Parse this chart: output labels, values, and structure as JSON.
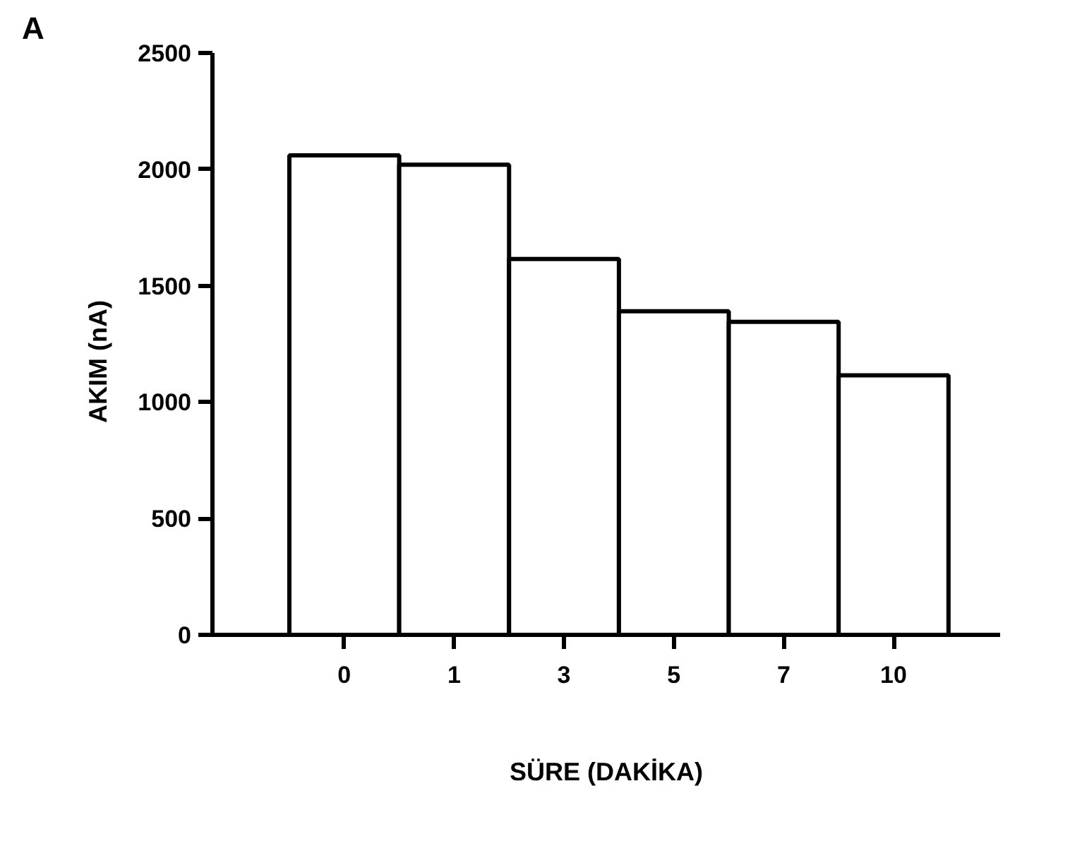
{
  "chart_data": {
    "type": "bar",
    "categories": [
      "0",
      "1",
      "3",
      "5",
      "7",
      "10"
    ],
    "values": [
      2060,
      2020,
      1615,
      1390,
      1345,
      1115
    ],
    "color": "#ffffff",
    "ylim": [
      0,
      2500
    ],
    "yticks": [
      0,
      500,
      1000,
      1500,
      2000,
      2500
    ],
    "grid": false,
    "xlabel": "SÜRE (DAKİKA)",
    "ylabel": "AKIM      (nA)",
    "annotations": [
      "A"
    ]
  }
}
